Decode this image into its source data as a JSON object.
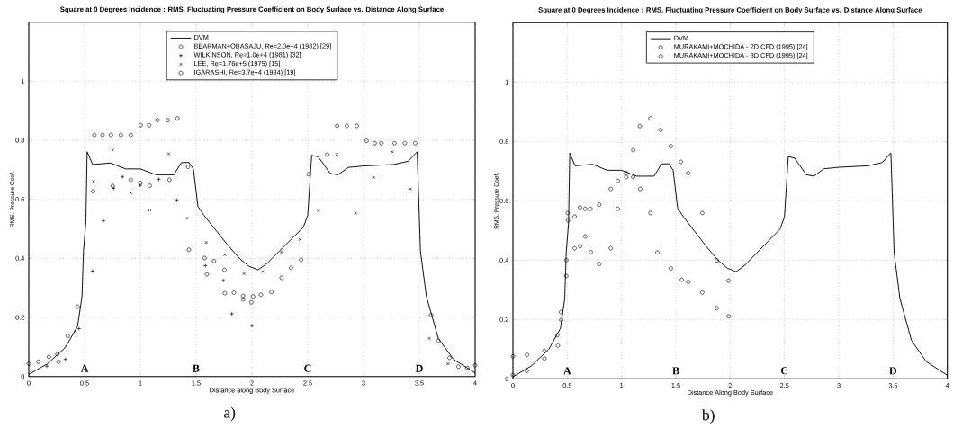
{
  "chart_data": [
    {
      "type": "line",
      "title": "Square at 0 Degrees Incidence : RMS. Fluctuating Pressure Coefficient on Body Surface vs. Distance Along Surface",
      "xlabel": "Distance along Body Surface",
      "ylabel": "RMS. Pressure Coef.",
      "xlim": [
        0,
        4
      ],
      "ylim": [
        0,
        1.2
      ],
      "xticks": [
        0,
        0.5,
        1,
        1.5,
        2,
        2.5,
        3,
        3.5,
        4
      ],
      "yticks": [
        0,
        0.2,
        0.4,
        0.6,
        0.8,
        1
      ],
      "grid": true,
      "legend": "top",
      "annotations": [
        "A",
        "B",
        "C",
        "D",
        "a)"
      ],
      "series": [
        {
          "name": "DVM",
          "color": "#000000",
          "x": [
            0,
            0.167,
            0.329,
            0.437,
            0.477,
            0.49,
            0.512,
            0.523,
            0.572,
            0.733,
            0.868,
            1.0,
            1.14,
            1.3,
            1.367,
            1.435,
            1.475,
            1.516,
            1.57,
            1.677,
            1.785,
            1.893,
            1.974,
            2.055,
            2.136,
            2.244,
            2.35,
            2.46,
            2.5,
            2.535,
            2.594,
            2.7,
            2.77,
            2.864,
            3.0,
            3.27,
            3.4,
            3.48,
            3.51,
            3.563,
            3.67,
            3.806,
            4.0
          ],
          "values": [
            0.007,
            0.043,
            0.099,
            0.17,
            0.271,
            0.424,
            0.525,
            0.761,
            0.718,
            0.723,
            0.703,
            0.703,
            0.683,
            0.683,
            0.724,
            0.725,
            0.703,
            0.576,
            0.546,
            0.495,
            0.444,
            0.398,
            0.373,
            0.361,
            0.383,
            0.424,
            0.464,
            0.505,
            0.546,
            0.749,
            0.744,
            0.688,
            0.683,
            0.708,
            0.713,
            0.718,
            0.729,
            0.761,
            0.424,
            0.271,
            0.129,
            0.058,
            0.012
          ]
        },
        {
          "name": "BEARMAN+OBASAJU, Re=2.0e+4 (1982) [29]",
          "type": "scatter",
          "marker": "circle",
          "color": "#000000",
          "x": [
            0.267,
            0.577,
            0.752,
            0.914,
            1.0,
            1.084,
            1.26,
            1.435,
            1.596,
            1.757,
            1.92,
            2.01
          ],
          "values": [
            0.05,
            0.627,
            0.645,
            0.666,
            0.655,
            0.646,
            0.666,
            0.429,
            0.346,
            0.282,
            0.273,
            0.271
          ]
        },
        {
          "name": "WILKINSON, Re=1.0e+4 (1981) [32]",
          "type": "scatter",
          "marker": "cross",
          "color": "#000000",
          "x": [
            0.162,
            0.329,
            0.45,
            0.572,
            0.669,
            0.76,
            0.84,
            0.998,
            1.165,
            1.327,
            1.583,
            1.744,
            1.82,
            2.0
          ],
          "values": [
            0.035,
            0.058,
            0.162,
            0.357,
            0.527,
            0.637,
            0.676,
            0.647,
            0.668,
            0.597,
            0.375,
            0.325,
            0.212,
            0.172
          ]
        },
        {
          "name": "LEE, Re=1.76e+5 (1975) [15]",
          "type": "scatter",
          "color": "#000000",
          "x": [
            0.418,
            0.58,
            0.752,
            0.917,
            1.084,
            1.254,
            1.42,
            1.59,
            1.757,
            1.928,
            2.095,
            2.265,
            2.43,
            2.595,
            2.76,
            2.93,
            3.09,
            3.256,
            3.42,
            3.59,
            3.757
          ],
          "values": [
            0.154,
            0.66,
            0.767,
            0.622,
            0.564,
            0.754,
            0.536,
            0.454,
            0.412,
            0.348,
            0.355,
            0.421,
            0.464,
            0.563,
            0.752,
            0.553,
            0.674,
            0.761,
            0.635,
            0.129,
            0.043
          ]
        },
        {
          "name": "IGARASHI, Re=3.7e+4 (1984) [19]",
          "type": "scatter",
          "marker": "circle",
          "color": "#000000",
          "x": [
            0,
            0.086,
            0.18,
            0.256,
            0.35,
            0.437,
            0.588,
            0.661,
            0.736,
            0.825,
            0.914,
            1.003,
            1.079,
            1.154,
            1.246,
            1.332,
            1.427,
            1.575,
            1.66,
            1.753,
            1.838,
            1.92,
            1.995,
            2.08,
            2.175,
            2.265,
            2.35,
            2.44,
            2.508,
            2.675,
            2.764,
            2.85,
            2.94,
            3.026,
            3.1,
            3.16,
            3.277,
            3.37,
            3.463,
            3.604,
            3.67,
            3.77,
            3.85,
            3.93,
            4.0
          ],
          "values": [
            0.043,
            0.05,
            0.066,
            0.075,
            0.137,
            0.236,
            0.818,
            0.818,
            0.818,
            0.818,
            0.818,
            0.851,
            0.851,
            0.868,
            0.868,
            0.874,
            0.71,
            0.401,
            0.391,
            0.361,
            0.284,
            0.261,
            0.251,
            0.277,
            0.286,
            0.334,
            0.368,
            0.395,
            0.685,
            0.751,
            0.849,
            0.849,
            0.849,
            0.798,
            0.79,
            0.79,
            0.79,
            0.79,
            0.79,
            0.208,
            0.121,
            0.063,
            0.033,
            0.029,
            0.038
          ]
        }
      ]
    },
    {
      "type": "line",
      "title": "Square at 0 Degrees Incidence : RMS. Fluctuating Pressure Coefficient on Body Surface vs. Distance Along Surface",
      "xlabel": "Distance Along Body Surface",
      "ylabel": "RMS. Pressure Coef.",
      "xlim": [
        0,
        4
      ],
      "ylim": [
        0,
        1.2
      ],
      "xticks": [
        0,
        0.5,
        1,
        1.5,
        2,
        2.5,
        3,
        3.5,
        4
      ],
      "yticks": [
        0,
        0.2,
        0.4,
        0.6,
        0.8,
        1
      ],
      "grid": true,
      "legend": "top",
      "annotations": [
        "A",
        "B",
        "C",
        "D",
        "b)"
      ],
      "series": [
        {
          "name": "DVM",
          "color": "#000000",
          "x": [
            0,
            0.167,
            0.329,
            0.437,
            0.477,
            0.49,
            0.512,
            0.523,
            0.572,
            0.733,
            0.868,
            1.0,
            1.14,
            1.3,
            1.367,
            1.435,
            1.475,
            1.516,
            1.57,
            1.677,
            1.785,
            1.893,
            1.974,
            2.055,
            2.136,
            2.244,
            2.35,
            2.46,
            2.5,
            2.535,
            2.594,
            2.7,
            2.77,
            2.864,
            3.0,
            3.27,
            3.4,
            3.48,
            3.51,
            3.563,
            3.67,
            3.806,
            4.0
          ],
          "values": [
            0.007,
            0.043,
            0.099,
            0.17,
            0.271,
            0.424,
            0.525,
            0.761,
            0.718,
            0.723,
            0.703,
            0.703,
            0.683,
            0.683,
            0.724,
            0.725,
            0.703,
            0.576,
            0.546,
            0.495,
            0.444,
            0.398,
            0.373,
            0.361,
            0.383,
            0.424,
            0.464,
            0.505,
            0.546,
            0.749,
            0.744,
            0.688,
            0.683,
            0.708,
            0.713,
            0.718,
            0.729,
            0.761,
            0.424,
            0.271,
            0.129,
            0.058,
            0.012
          ]
        },
        {
          "name": "MURAKAMI+MOCHIDA - 2D CFD (1995) [24]",
          "type": "scatter",
          "marker": "circle",
          "color": "#000000",
          "x": [
            0.129,
            0.29,
            0.413,
            0.445,
            0.491,
            0.507,
            0.568,
            0.619,
            0.665,
            0.716,
            0.794,
            0.901,
            0.965,
            1.043,
            1.108,
            1.169,
            1.266,
            1.36,
            1.453,
            1.547,
            1.614,
            1.743,
            1.877,
            1.985
          ],
          "values": [
            0.081,
            0.094,
            0.112,
            0.199,
            0.347,
            0.534,
            0.44,
            0.447,
            0.48,
            0.427,
            0.387,
            0.44,
            0.573,
            0.694,
            0.771,
            0.852,
            0.878,
            0.839,
            0.784,
            0.731,
            0.693,
            0.559,
            0.399,
            0.331
          ]
        },
        {
          "name": "MURAKAMI+MOCHIDA - 3D CFD (1995) [24]",
          "type": "scatter",
          "marker": "circle",
          "color": "#000000",
          "x": [
            0,
            0,
            0.126,
            0.29,
            0.408,
            0.442,
            0.491,
            0.504,
            0.568,
            0.617,
            0.665,
            0.713,
            0.794,
            0.901,
            0.965,
            1.043,
            1.108,
            1.172,
            1.266,
            1.33,
            1.453,
            1.555,
            1.614,
            1.743,
            1.877,
            1.985
          ],
          "values": [
            0.013,
            0.076,
            0.027,
            0.068,
            0.147,
            0.225,
            0.4,
            0.559,
            0.547,
            0.578,
            0.573,
            0.573,
            0.587,
            0.64,
            0.667,
            0.68,
            0.68,
            0.64,
            0.559,
            0.426,
            0.372,
            0.334,
            0.327,
            0.291,
            0.238,
            0.211
          ]
        }
      ]
    }
  ]
}
